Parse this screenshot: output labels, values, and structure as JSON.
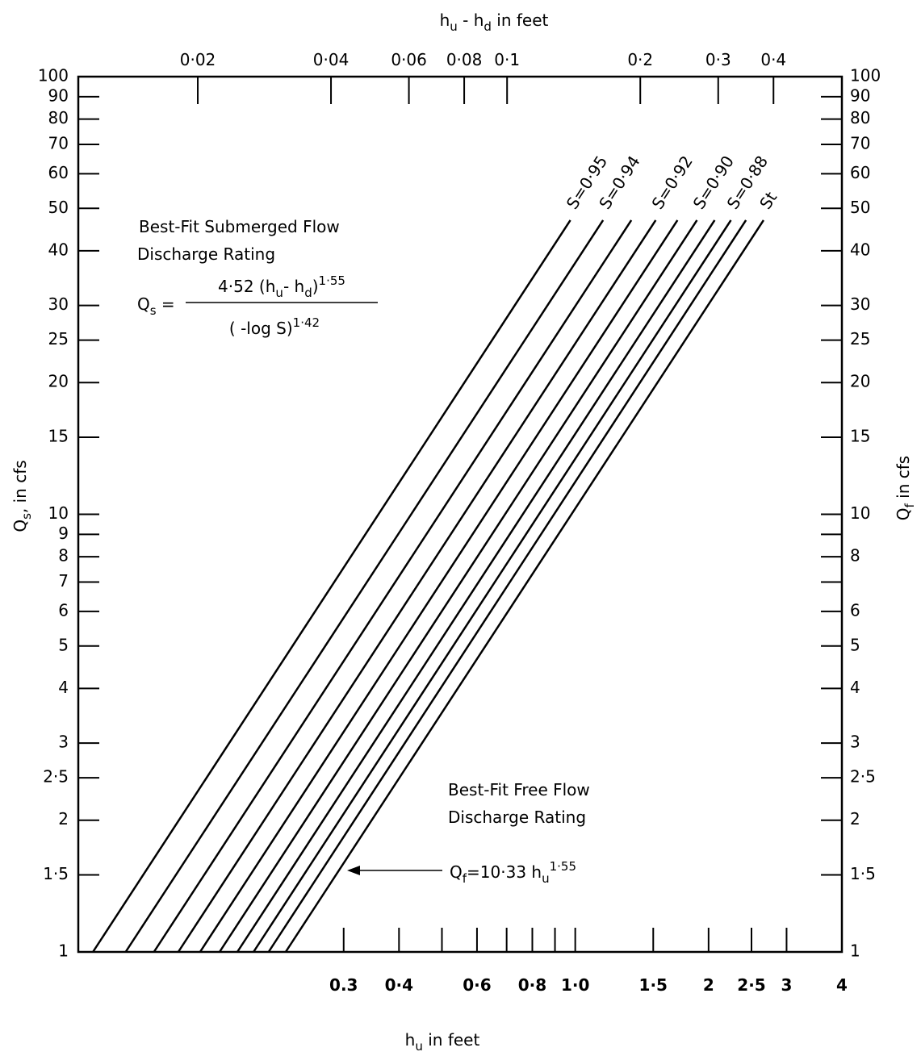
{
  "chart_data": {
    "type": "line",
    "x_label": [
      {
        "text": "h"
      },
      {
        "text": "u",
        "style": "sub"
      },
      {
        "text": " in feet"
      }
    ],
    "x2_label": [
      {
        "text": "h"
      },
      {
        "text": "u",
        "style": "sub"
      },
      {
        "text": " - h"
      },
      {
        "text": "d",
        "style": "sub"
      },
      {
        "text": " in feet"
      }
    ],
    "y_label": [
      {
        "text": "Q"
      },
      {
        "text": "s",
        "style": "sub"
      },
      {
        "text": ", in cfs"
      }
    ],
    "y2_label": [
      {
        "text": "Q"
      },
      {
        "text": "f",
        "style": "sub"
      },
      {
        "text": " in cfs"
      }
    ],
    "log_x": true,
    "log_y": true,
    "xlim": [
      0.0755,
      4
    ],
    "xticks": [
      0.3,
      {
        "value": 0.4,
        "label": "0·4"
      },
      {
        "value": 0.6,
        "label": "0·6"
      },
      {
        "value": 0.8,
        "label": "0·8"
      },
      {
        "value": 1,
        "label": "1·0"
      },
      {
        "value": 1.5,
        "label": "1·5"
      },
      2,
      {
        "value": 2.5,
        "label": "2·5"
      },
      3,
      4
    ],
    "xminorticks": [
      0.5,
      0.7,
      0.9
    ],
    "x2lim": [
      0.01074,
      0.571
    ],
    "x2ticks": [
      {
        "value": 0.02,
        "label": "0·02"
      },
      {
        "value": 0.04,
        "label": "0·04"
      },
      {
        "value": 0.06,
        "label": "0·06"
      },
      {
        "value": 0.08,
        "label": "0·08"
      },
      {
        "value": 0.1,
        "label": "0·1"
      },
      {
        "value": 0.2,
        "label": "0·2"
      },
      {
        "value": 0.3,
        "label": "0·3"
      },
      {
        "value": 0.4,
        "label": "0·4"
      }
    ],
    "ylim": [
      1,
      100
    ],
    "yticks": [
      1,
      {
        "value": 1.5,
        "label": "1·5"
      },
      2,
      {
        "value": 2.5,
        "label": "2·5"
      },
      3,
      4,
      5,
      6,
      7,
      8,
      9,
      10,
      15,
      20,
      25,
      30,
      40,
      50,
      60,
      70,
      80,
      90,
      100
    ],
    "y2lim": [
      1,
      100
    ],
    "y2ticks": [
      1,
      {
        "value": 1.5,
        "label": "1·5"
      },
      2,
      {
        "value": 2.5,
        "label": "2·5"
      },
      3,
      4,
      5,
      6,
      8,
      10,
      15,
      20,
      25,
      30,
      40,
      50,
      60,
      70,
      80,
      90,
      100
    ],
    "y2minorticks": [
      7,
      9
    ],
    "line_color": "#000000",
    "series": [
      {
        "name": "S=0·95",
        "xaxis": "x2",
        "x": [
          0.01159,
          0.139
        ],
        "values": [
          1,
          47
        ]
      },
      {
        "name": "S=0·94",
        "xaxis": "x2",
        "x": [
          0.01374,
          0.1648
        ],
        "values": [
          1,
          47
        ]
      },
      {
        "xaxis": "x2",
        "x": [
          0.01592,
          0.1909
        ],
        "values": [
          1,
          47
        ]
      },
      {
        "name": "S=0·92",
        "xaxis": "x2",
        "x": [
          0.01807,
          0.2167
        ],
        "values": [
          1,
          47
        ]
      },
      {
        "xaxis": "x2",
        "x": [
          0.02024,
          0.2427
        ],
        "values": [
          1,
          47
        ]
      },
      {
        "name": "S=0·90",
        "xaxis": "x2",
        "x": [
          0.0224,
          0.2686
        ],
        "values": [
          1,
          47
        ]
      },
      {
        "xaxis": "x2",
        "x": [
          0.02457,
          0.2945
        ],
        "values": [
          1,
          47
        ]
      },
      {
        "name": "S=0·88",
        "xaxis": "x2",
        "x": [
          0.02673,
          0.3205
        ],
        "values": [
          1,
          47
        ]
      },
      {
        "xaxis": "x2",
        "x": [
          0.02891,
          0.3466
        ],
        "values": [
          1,
          47
        ]
      },
      {
        "name": "St",
        "x": [
          0.2219,
          2.662
        ],
        "values": [
          1,
          47
        ]
      }
    ],
    "annotations": {
      "submerged": {
        "lines": [
          "Best-Fit Submerged Flow",
          "Discharge Rating"
        ],
        "lhs": [
          {
            "text": "Q"
          },
          {
            "text": "s",
            "style": "sub"
          },
          {
            "text": " ="
          }
        ],
        "numerator": [
          {
            "text": "4·52 (h"
          },
          {
            "text": "u",
            "style": "sub"
          },
          {
            "text": "- h"
          },
          {
            "text": "d",
            "style": "sub"
          },
          {
            "text": ")"
          },
          {
            "text": "1·55",
            "style": "sup"
          }
        ],
        "denominator": [
          {
            "text": "( -log S)"
          },
          {
            "text": "1·42",
            "style": "sup"
          }
        ]
      },
      "free": {
        "lines": [
          "Best-Fit Free Flow",
          "Discharge Rating"
        ],
        "formula": [
          {
            "text": "Q"
          },
          {
            "text": "f",
            "style": "sub"
          },
          {
            "text": "=10·33 h"
          },
          {
            "text": "u",
            "style": "sub"
          },
          {
            "text": "1·55",
            "style": "sup"
          }
        ]
      }
    }
  }
}
